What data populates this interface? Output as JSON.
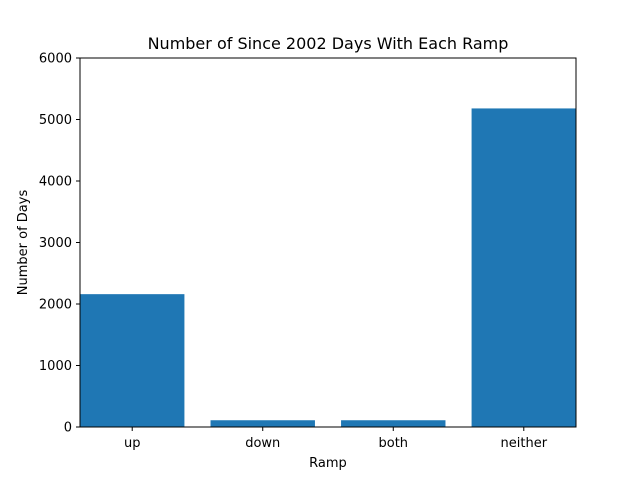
{
  "chart_data": {
    "type": "bar",
    "title": "Number of Since 2002 Days With Each Ramp",
    "xlabel": "Ramp",
    "ylabel": "Number of Days",
    "categories": [
      "up",
      "down",
      "both",
      "neither"
    ],
    "values": [
      2160,
      110,
      110,
      5180
    ],
    "ylim": [
      0,
      6000
    ],
    "yticks": [
      0,
      1000,
      2000,
      3000,
      4000,
      5000,
      6000
    ],
    "bar_color": "#1f77b4",
    "grid": false,
    "legend": "none"
  }
}
